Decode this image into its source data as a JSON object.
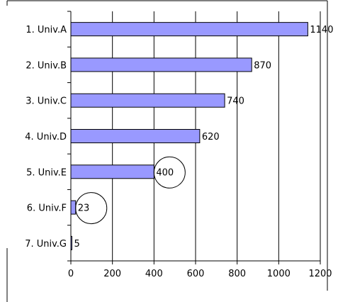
{
  "chart_data": {
    "type": "bar",
    "orientation": "horizontal",
    "categories": [
      "1. Univ.A",
      "2. Univ.B",
      "3. Univ.C",
      "4. Univ.D",
      "5. Univ.E",
      "6. Univ.F",
      "7. Univ.G"
    ],
    "values": [
      1140,
      870,
      740,
      620,
      400,
      23,
      5
    ],
    "value_labels": [
      "1140",
      "870",
      "740",
      "620",
      "400",
      "23",
      "5"
    ],
    "xlim": [
      0,
      1200
    ],
    "xticks": [
      0,
      200,
      400,
      600,
      800,
      1000,
      1200
    ],
    "xtick_labels": [
      "0",
      "200",
      "400",
      "600",
      "800",
      "1000",
      "1200"
    ],
    "grid": "vertical",
    "bar_color": "#9999ff",
    "highlighted_categories": [
      "5. Univ.E",
      "6. Univ.F"
    ]
  }
}
